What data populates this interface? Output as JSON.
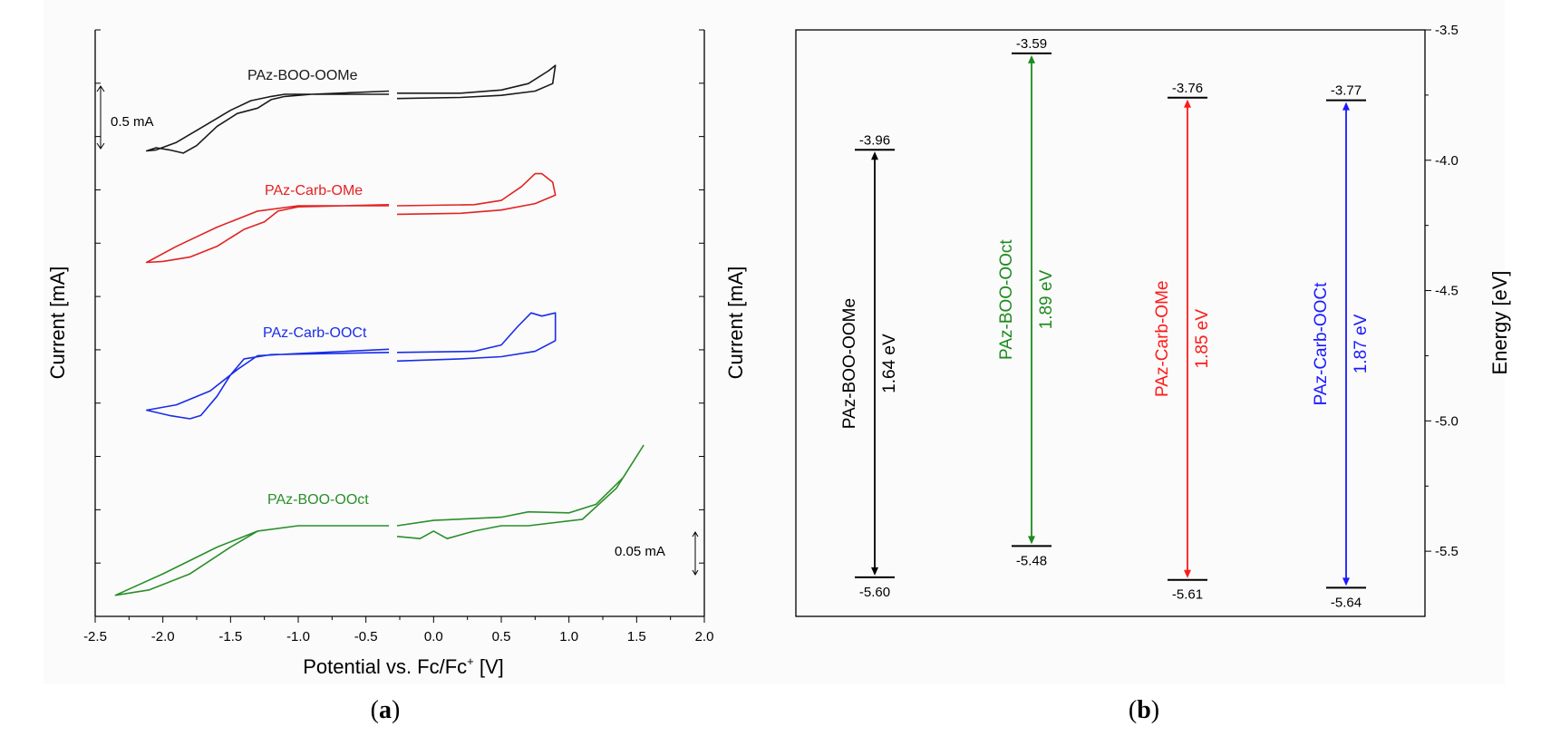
{
  "chart_data": [
    {
      "type": "line",
      "panel": "(a)",
      "xlabel": "Potential vs. Fc/Fc",
      "xlabel_sup": "+",
      "xlabel_unit": " [V]",
      "ylabel_left": "Current [mA]",
      "ylabel_right": "Current [mA]",
      "xlim": [
        -2.5,
        2.0
      ],
      "x_ticks": [
        "-2.5",
        "-2.0",
        "-1.5",
        "-1.0",
        "-0.5",
        "0.0",
        "0.5",
        "1.0",
        "1.5",
        "2.0"
      ],
      "scale_bars": [
        {
          "label": "0.5 mA",
          "applies_to": "left axis"
        },
        {
          "label": "0.05 mA",
          "applies_to": "right axis"
        }
      ],
      "series": [
        {
          "name": "PAz-BOO-OOMe",
          "color": "#1a1a1a",
          "axis": "left",
          "cathodic": [
            [
              -0.33,
              0.0
            ],
            [
              -0.9,
              0.0
            ],
            [
              -1.1,
              0.0
            ],
            [
              -1.2,
              -0.02
            ],
            [
              -1.35,
              -0.06
            ],
            [
              -1.5,
              -0.15
            ],
            [
              -1.7,
              -0.3
            ],
            [
              -1.9,
              -0.45
            ],
            [
              -2.05,
              -0.52
            ],
            [
              -2.12,
              -0.53
            ],
            [
              -2.05,
              -0.5
            ],
            [
              -1.95,
              -0.52
            ],
            [
              -1.85,
              -0.55
            ],
            [
              -1.75,
              -0.48
            ],
            [
              -1.6,
              -0.3
            ],
            [
              -1.45,
              -0.18
            ],
            [
              -1.3,
              -0.13
            ],
            [
              -1.2,
              -0.05
            ],
            [
              -1.1,
              -0.02
            ],
            [
              -0.9,
              0.0
            ],
            [
              -0.33,
              0.03
            ]
          ],
          "anodic": [
            [
              -0.27,
              0.01
            ],
            [
              0.2,
              0.01
            ],
            [
              0.5,
              0.04
            ],
            [
              0.7,
              0.1
            ],
            [
              0.85,
              0.22
            ],
            [
              0.9,
              0.27
            ],
            [
              0.88,
              0.1
            ],
            [
              0.75,
              0.03
            ],
            [
              0.5,
              -0.01
            ],
            [
              0.2,
              -0.03
            ],
            [
              -0.27,
              -0.04
            ]
          ]
        },
        {
          "name": "PAz-Carb-OMe",
          "color": "#e32222",
          "axis": "left",
          "cathodic": [
            [
              -0.33,
              0.0
            ],
            [
              -1.0,
              0.0
            ],
            [
              -1.3,
              -0.05
            ],
            [
              -1.6,
              -0.2
            ],
            [
              -1.9,
              -0.38
            ],
            [
              -2.12,
              -0.53
            ],
            [
              -2.0,
              -0.52
            ],
            [
              -1.8,
              -0.48
            ],
            [
              -1.6,
              -0.38
            ],
            [
              -1.4,
              -0.22
            ],
            [
              -1.25,
              -0.15
            ],
            [
              -1.15,
              -0.05
            ],
            [
              -1.0,
              -0.01
            ],
            [
              -0.33,
              0.01
            ]
          ],
          "anodic": [
            [
              -0.27,
              0.0
            ],
            [
              0.3,
              0.01
            ],
            [
              0.5,
              0.05
            ],
            [
              0.65,
              0.18
            ],
            [
              0.75,
              0.3
            ],
            [
              0.8,
              0.3
            ],
            [
              0.88,
              0.22
            ],
            [
              0.9,
              0.1
            ],
            [
              0.75,
              0.02
            ],
            [
              0.5,
              -0.04
            ],
            [
              0.2,
              -0.07
            ],
            [
              -0.27,
              -0.08
            ]
          ]
        },
        {
          "name": "PAz-Carb-OOCt",
          "color": "#1a2ce8",
          "axis": "left",
          "cathodic": [
            [
              -0.33,
              0.04
            ],
            [
              -1.0,
              0.0
            ],
            [
              -1.3,
              -0.02
            ],
            [
              -1.45,
              -0.15
            ],
            [
              -1.65,
              -0.35
            ],
            [
              -1.9,
              -0.48
            ],
            [
              -2.12,
              -0.53
            ],
            [
              -1.95,
              -0.58
            ],
            [
              -1.8,
              -0.61
            ],
            [
              -1.72,
              -0.58
            ],
            [
              -1.6,
              -0.4
            ],
            [
              -1.5,
              -0.2
            ],
            [
              -1.4,
              -0.05
            ],
            [
              -1.2,
              -0.01
            ],
            [
              -0.33,
              0.01
            ]
          ],
          "anodic": [
            [
              -0.27,
              0.01
            ],
            [
              0.3,
              0.02
            ],
            [
              0.5,
              0.08
            ],
            [
              0.62,
              0.25
            ],
            [
              0.72,
              0.38
            ],
            [
              0.8,
              0.35
            ],
            [
              0.9,
              0.38
            ],
            [
              0.9,
              0.12
            ],
            [
              0.75,
              0.02
            ],
            [
              0.5,
              -0.03
            ],
            [
              0.2,
              -0.05
            ],
            [
              -0.27,
              -0.07
            ]
          ]
        },
        {
          "name": "PAz-BOO-OOct",
          "color": "#2a8f2a",
          "axis": "right",
          "cathodic": [
            [
              -0.33,
              0.0
            ],
            [
              -1.0,
              0.0
            ],
            [
              -1.3,
              -0.005
            ],
            [
              -1.6,
              -0.02
            ],
            [
              -2.0,
              -0.045
            ],
            [
              -2.35,
              -0.065
            ],
            [
              -2.1,
              -0.06
            ],
            [
              -1.8,
              -0.045
            ],
            [
              -1.5,
              -0.02
            ],
            [
              -1.3,
              -0.005
            ],
            [
              -1.0,
              0.0
            ],
            [
              -0.33,
              0.0
            ]
          ],
          "anodic": [
            [
              -0.27,
              0.0
            ],
            [
              0.0,
              0.005
            ],
            [
              0.5,
              0.008
            ],
            [
              0.7,
              0.013
            ],
            [
              1.0,
              0.012
            ],
            [
              1.2,
              0.02
            ],
            [
              1.4,
              0.045
            ],
            [
              1.55,
              0.075
            ],
            [
              1.35,
              0.035
            ],
            [
              1.1,
              0.006
            ],
            [
              0.7,
              0.0
            ],
            [
              0.5,
              0.0
            ],
            [
              0.3,
              -0.005
            ],
            [
              0.1,
              -0.012
            ],
            [
              0.0,
              -0.005
            ],
            [
              -0.1,
              -0.012
            ],
            [
              -0.27,
              -0.01
            ]
          ]
        }
      ]
    },
    {
      "type": "energy-level",
      "panel": "(b)",
      "ylabel": "Energy [eV]",
      "ylim": [
        -5.75,
        -3.5
      ],
      "y_ticks": [
        "-3.5",
        "-4.0",
        "-4.5",
        "-5.0",
        "-5.5"
      ],
      "materials": [
        {
          "name": "PAz-BOO-OOMe",
          "lumo": -3.96,
          "homo": -5.6,
          "lumo_label": "-3.96",
          "homo_label": "-5.60",
          "gap_label": "1.64 eV",
          "color": "#000000"
        },
        {
          "name": "PAz-BOO-OOct",
          "lumo": -3.59,
          "homo": -5.48,
          "lumo_label": "-3.59",
          "homo_label": "-5.48",
          "gap_label": "1.89 eV",
          "color": "#1f8a1f"
        },
        {
          "name": "PAz-Carb-OMe",
          "lumo": -3.76,
          "homo": -5.61,
          "lumo_label": "-3.76",
          "homo_label": "-5.61",
          "gap_label": "1.85 eV",
          "color": "#ff1a1a"
        },
        {
          "name": "PAz-Carb-OOCt",
          "lumo": -3.77,
          "homo": -5.64,
          "lumo_label": "-3.77",
          "homo_label": "-5.64",
          "gap_label": "1.87 eV",
          "color": "#1a1aff"
        }
      ]
    }
  ]
}
